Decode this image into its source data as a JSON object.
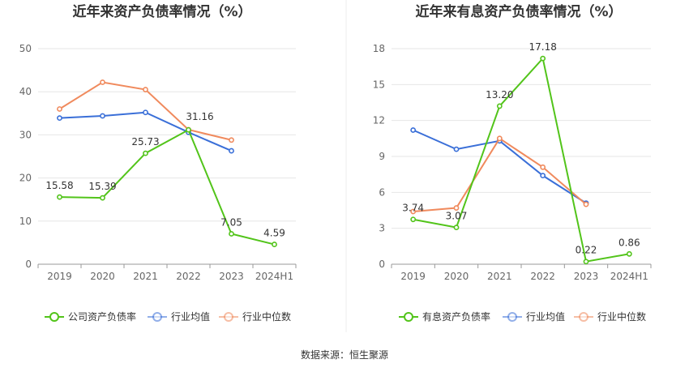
{
  "source_label": "数据来源：恒生聚源",
  "colors": {
    "company": "#52c41a",
    "industry_avg": "#3a6fd8",
    "industry_median": "#f08a5d",
    "grid": "#e6e6e6",
    "axis": "#999999"
  },
  "chart_data": [
    {
      "type": "line",
      "title": "近年来资产负债率情况（%）",
      "categories": [
        "2019",
        "2020",
        "2021",
        "2022",
        "2023",
        "2024H1"
      ],
      "ylim": [
        0,
        50
      ],
      "yticks": [
        0,
        10,
        20,
        30,
        40,
        50
      ],
      "series": [
        {
          "name": "公司资产负债率",
          "color": "#52c41a",
          "values": [
            15.58,
            15.39,
            25.73,
            31.16,
            7.05,
            4.59
          ],
          "labels": [
            "15.58",
            "15.39",
            "25.73",
            "31.16",
            "7.05",
            "4.59"
          ]
        },
        {
          "name": "行业均值",
          "color": "#3a6fd8",
          "values": [
            33.9,
            34.4,
            35.2,
            30.6,
            26.3,
            null
          ]
        },
        {
          "name": "行业中位数",
          "color": "#f08a5d",
          "values": [
            36.0,
            42.2,
            40.5,
            31.2,
            28.8,
            null
          ]
        }
      ],
      "legend": [
        "公司资产负债率",
        "行业均值",
        "行业中位数"
      ],
      "legend_position": "bottom"
    },
    {
      "type": "line",
      "title": "近年来有息资产负债率情况（%）",
      "categories": [
        "2019",
        "2020",
        "2021",
        "2022",
        "2023",
        "2024H1"
      ],
      "ylim": [
        0,
        18
      ],
      "yticks": [
        0,
        3,
        6,
        9,
        12,
        15,
        18
      ],
      "series": [
        {
          "name": "有息资产负债率",
          "color": "#52c41a",
          "values": [
            3.74,
            3.07,
            13.2,
            17.18,
            0.22,
            0.86
          ],
          "labels": [
            "3.74",
            "3.07",
            "13.20",
            "17.18",
            "0.22",
            "0.86"
          ]
        },
        {
          "name": "行业均值",
          "color": "#3a6fd8",
          "values": [
            11.2,
            9.6,
            10.3,
            7.4,
            5.1,
            null
          ]
        },
        {
          "name": "行业中位数",
          "color": "#f08a5d",
          "values": [
            4.4,
            4.7,
            10.5,
            8.1,
            5.0,
            null
          ]
        }
      ],
      "legend": [
        "有息资产负债率",
        "行业均值",
        "行业中位数"
      ],
      "legend_position": "bottom"
    }
  ]
}
